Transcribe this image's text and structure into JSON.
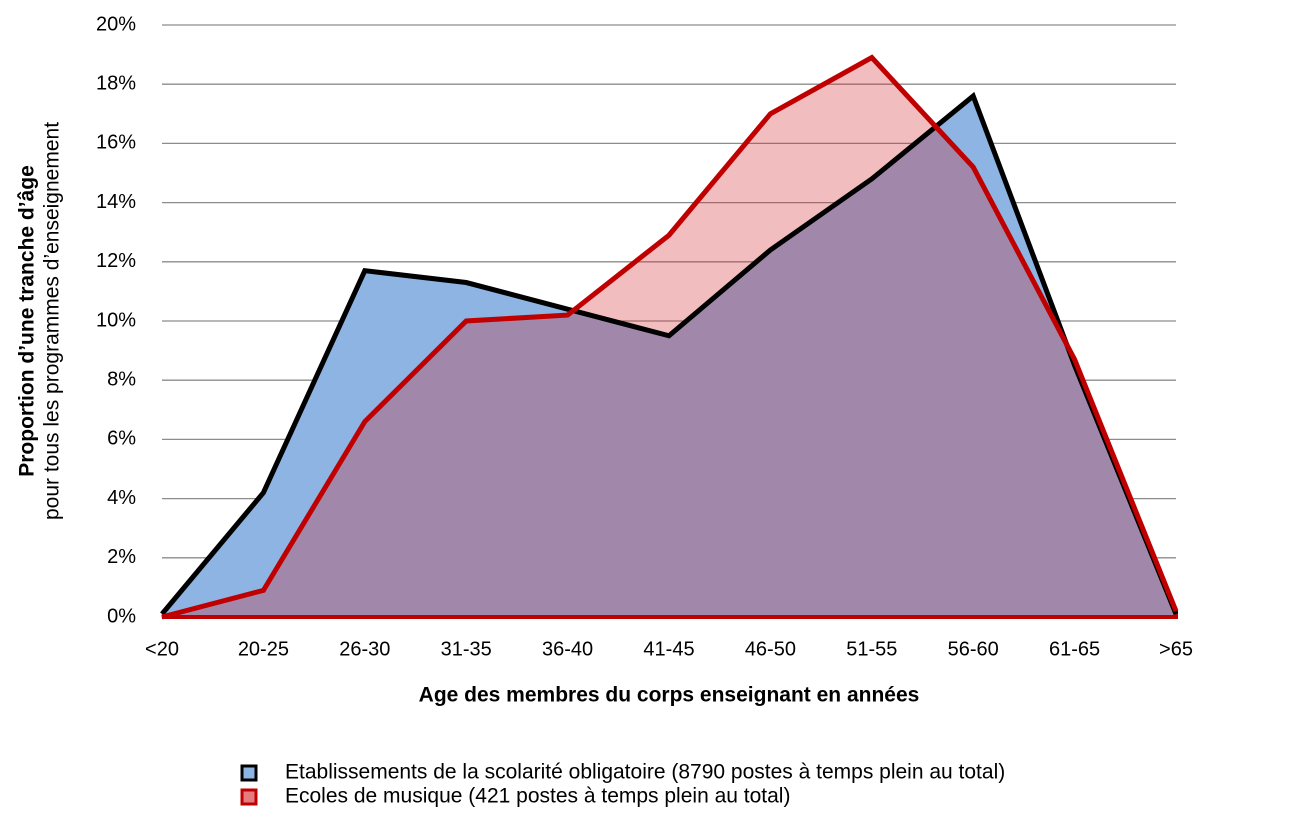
{
  "chart_data": {
    "type": "area",
    "xlabel": "Age des membres du corps enseignant en années",
    "ylabel": [
      "Proportion d’une tranche d’âge",
      "pour tous les programmes d’enseignement"
    ],
    "categories": [
      "<20",
      "20-25",
      "26-30",
      "31-35",
      "36-40",
      "41-45",
      "46-50",
      "51-55",
      "56-60",
      "61-65",
      ">65"
    ],
    "series": [
      {
        "name": "Etablissements de la scolarité obligatoire (8790 postes à temps plein au total)",
        "color": "#000000",
        "fill": "#8db4e2",
        "values": [
          0.1,
          4.2,
          11.7,
          11.3,
          10.4,
          9.5,
          12.4,
          14.8,
          17.6,
          8.5,
          0.1
        ]
      },
      {
        "name": "Ecoles de musique (421 postes à temps plein au total)",
        "color": "#c00000",
        "fill": "#d2232a",
        "values": [
          0,
          0.9,
          6.6,
          10.0,
          10.2,
          12.9,
          17.0,
          18.9,
          15.2,
          8.7,
          0.2
        ]
      }
    ],
    "ylim": [
      0,
      20
    ],
    "yticks": [
      {
        "value": 0,
        "label": "0%"
      },
      {
        "value": 2,
        "label": "2%"
      },
      {
        "value": 4,
        "label": "4%"
      },
      {
        "value": 6,
        "label": "6%"
      },
      {
        "value": 8,
        "label": "8%"
      },
      {
        "value": 10,
        "label": "10%"
      },
      {
        "value": 12,
        "label": "12%"
      },
      {
        "value": 14,
        "label": "14%"
      },
      {
        "value": 16,
        "label": "16%"
      },
      {
        "value": 18,
        "label": "18%"
      },
      {
        "value": 20,
        "label": "20%"
      }
    ],
    "grid": true
  }
}
